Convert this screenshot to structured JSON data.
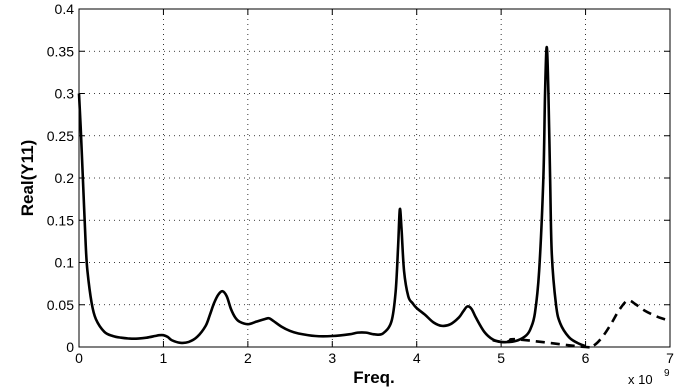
{
  "chart_data": {
    "type": "line",
    "title": "",
    "xlabel": "Freq.",
    "ylabel": "Real(Y11)",
    "x_multiplier_label": "x 10",
    "x_multiplier_exponent": "9",
    "xlim": [
      0,
      7
    ],
    "ylim": [
      0,
      0.4
    ],
    "x_ticks": [
      0,
      1,
      2,
      3,
      4,
      5,
      6,
      7
    ],
    "x_tick_labels": [
      "0",
      "1",
      "2",
      "3",
      "4",
      "5",
      "6",
      "7"
    ],
    "y_ticks": [
      0,
      0.05,
      0.1,
      0.15,
      0.2,
      0.25,
      0.3,
      0.35,
      0.4
    ],
    "y_tick_labels": [
      "0",
      "0.05",
      "0.1",
      "0.15",
      "0.2",
      "0.25",
      "0.3",
      "0.35",
      "0.4"
    ],
    "grid": true,
    "legend": "none",
    "series": [
      {
        "style": "solid",
        "color": "#000000",
        "x": [
          0,
          0.02,
          0.05,
          0.08,
          0.1,
          0.15,
          0.2,
          0.3,
          0.4,
          0.5,
          0.6,
          0.7,
          0.8,
          0.9,
          0.95,
          1.0,
          1.05,
          1.1,
          1.2,
          1.3,
          1.4,
          1.5,
          1.55,
          1.6,
          1.65,
          1.7,
          1.75,
          1.8,
          1.85,
          1.9,
          2.0,
          2.1,
          2.2,
          2.25,
          2.3,
          2.4,
          2.5,
          2.6,
          2.8,
          3.0,
          3.2,
          3.3,
          3.4,
          3.5,
          3.6,
          3.7,
          3.75,
          3.78,
          3.8,
          3.82,
          3.85,
          3.9,
          3.95,
          4.0,
          4.1,
          4.2,
          4.3,
          4.4,
          4.5,
          4.55,
          4.6,
          4.65,
          4.7,
          4.8,
          4.9,
          5.0,
          5.1,
          5.2,
          5.3,
          5.35,
          5.4,
          5.45,
          5.5,
          5.52,
          5.54,
          5.56,
          5.58,
          5.6,
          5.65,
          5.7,
          5.8,
          5.9,
          6.0
        ],
        "y": [
          0.3,
          0.26,
          0.19,
          0.12,
          0.09,
          0.052,
          0.033,
          0.018,
          0.013,
          0.011,
          0.01,
          0.01,
          0.011,
          0.013,
          0.014,
          0.014,
          0.012,
          0.008,
          0.005,
          0.006,
          0.012,
          0.025,
          0.038,
          0.052,
          0.062,
          0.066,
          0.06,
          0.045,
          0.035,
          0.03,
          0.027,
          0.03,
          0.033,
          0.034,
          0.031,
          0.024,
          0.019,
          0.016,
          0.013,
          0.013,
          0.015,
          0.017,
          0.017,
          0.015,
          0.016,
          0.03,
          0.065,
          0.12,
          0.163,
          0.14,
          0.09,
          0.06,
          0.052,
          0.046,
          0.038,
          0.029,
          0.025,
          0.027,
          0.035,
          0.042,
          0.048,
          0.045,
          0.035,
          0.018,
          0.009,
          0.006,
          0.006,
          0.008,
          0.014,
          0.022,
          0.04,
          0.09,
          0.2,
          0.3,
          0.355,
          0.3,
          0.2,
          0.11,
          0.05,
          0.028,
          0.012,
          0.005,
          0.001
        ]
      },
      {
        "style": "dashed",
        "color": "#000000",
        "x": [
          4.9,
          5.0,
          5.1,
          5.2,
          6.0,
          6.1,
          6.2,
          6.3,
          6.4,
          6.5,
          6.6,
          6.7,
          6.8,
          6.9,
          7.0
        ],
        "y": [
          0.008,
          0.006,
          0.007,
          0.009,
          0.0,
          0.002,
          0.012,
          0.027,
          0.044,
          0.055,
          0.05,
          0.043,
          0.038,
          0.034,
          0.031
        ]
      }
    ]
  }
}
